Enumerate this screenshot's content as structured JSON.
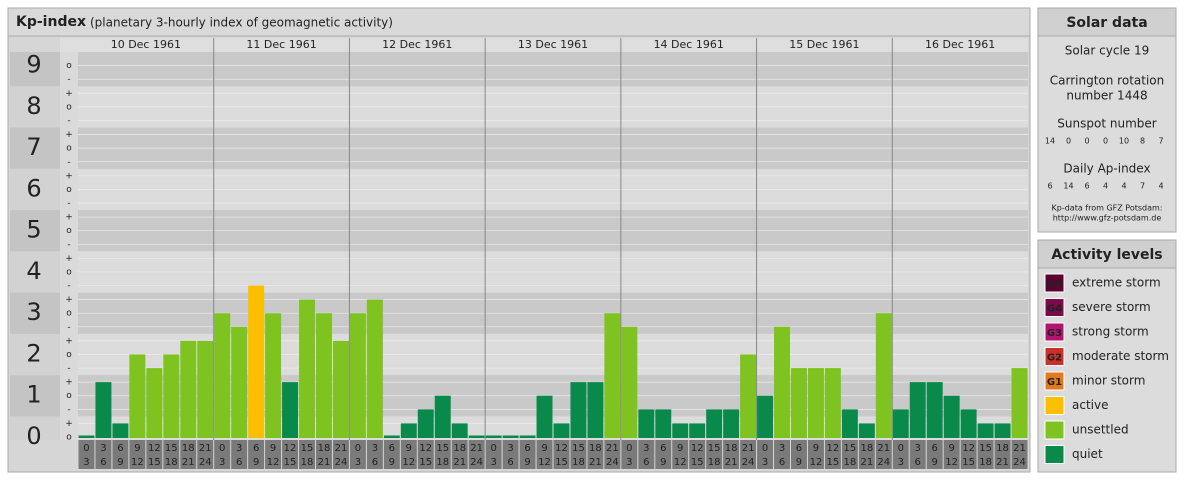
{
  "header": {
    "title": "Kp-index",
    "subtitle": "(planetary 3-hourly index of geomagnetic activity)"
  },
  "chart_data": {
    "type": "bar",
    "days": [
      "10 Dec 1961",
      "11 Dec 1961",
      "12 Dec 1961",
      "13 Dec 1961",
      "14 Dec 1961",
      "15 Dec 1961",
      "16 Dec 1961"
    ],
    "hours": [
      0,
      3,
      6,
      9,
      12,
      15,
      18,
      21,
      24
    ],
    "ylim": [
      0,
      9.33
    ],
    "yticks": [
      0,
      1,
      2,
      3,
      4,
      5,
      6,
      7,
      8,
      9
    ],
    "subticks": [
      {
        "value": 0,
        "label": "o"
      },
      {
        "value": 0.33,
        "label": "+"
      },
      {
        "value": 0.67,
        "label": "-"
      },
      {
        "value": 1,
        "label": "o"
      },
      {
        "value": 1.33,
        "label": "+"
      },
      {
        "value": 1.67,
        "label": "-"
      },
      {
        "value": 2,
        "label": "o"
      },
      {
        "value": 2.33,
        "label": "+"
      },
      {
        "value": 2.67,
        "label": "-"
      },
      {
        "value": 3,
        "label": "o"
      },
      {
        "value": 3.33,
        "label": "+"
      },
      {
        "value": 3.67,
        "label": "-"
      },
      {
        "value": 4,
        "label": "o"
      },
      {
        "value": 4.33,
        "label": "+"
      },
      {
        "value": 4.67,
        "label": "-"
      },
      {
        "value": 5,
        "label": "o"
      },
      {
        "value": 5.33,
        "label": "+"
      },
      {
        "value": 5.67,
        "label": "-"
      },
      {
        "value": 6,
        "label": "o"
      },
      {
        "value": 6.33,
        "label": "+"
      },
      {
        "value": 6.67,
        "label": "-"
      },
      {
        "value": 7,
        "label": "o"
      },
      {
        "value": 7.33,
        "label": "+"
      },
      {
        "value": 7.67,
        "label": "-"
      },
      {
        "value": 8,
        "label": "o"
      },
      {
        "value": 8.33,
        "label": "+"
      },
      {
        "value": 8.67,
        "label": "-"
      },
      {
        "value": 9,
        "label": "o"
      }
    ],
    "series": [
      {
        "values": [
          0,
          1.33,
          0.33,
          2,
          1.67,
          2,
          2.33,
          2.33,
          3,
          2.67,
          3.67,
          3,
          1.33,
          3.33,
          3,
          2.33,
          3,
          3.33,
          0,
          0.33,
          0.67,
          1,
          0.33,
          0,
          0,
          0,
          0,
          1,
          0.33,
          1.33,
          1.33,
          3,
          2.67,
          0.67,
          0.67,
          0.33,
          0.33,
          0.67,
          0.67,
          2,
          1,
          2.67,
          1.67,
          1.67,
          1.67,
          0.67,
          0.33,
          3,
          0.67,
          1.33,
          1.33,
          1,
          0.67,
          0.33,
          0.33,
          1.67
        ],
        "colors": [
          "#0a8a4a",
          "#0a8a4a",
          "#0a8a4a",
          "#7ec31f",
          "#7ec31f",
          "#7ec31f",
          "#7ec31f",
          "#7ec31f",
          "#7ec31f",
          "#7ec31f",
          "#fbbf00",
          "#7ec31f",
          "#0a8a4a",
          "#7ec31f",
          "#7ec31f",
          "#7ec31f",
          "#7ec31f",
          "#7ec31f",
          "#0a8a4a",
          "#0a8a4a",
          "#0a8a4a",
          "#0a8a4a",
          "#0a8a4a",
          "#0a8a4a",
          "#0a8a4a",
          "#0a8a4a",
          "#0a8a4a",
          "#0a8a4a",
          "#0a8a4a",
          "#0a8a4a",
          "#0a8a4a",
          "#7ec31f",
          "#7ec31f",
          "#0a8a4a",
          "#0a8a4a",
          "#0a8a4a",
          "#0a8a4a",
          "#0a8a4a",
          "#0a8a4a",
          "#7ec31f",
          "#0a8a4a",
          "#7ec31f",
          "#7ec31f",
          "#7ec31f",
          "#7ec31f",
          "#0a8a4a",
          "#0a8a4a",
          "#7ec31f",
          "#0a8a4a",
          "#0a8a4a",
          "#0a8a4a",
          "#0a8a4a",
          "#0a8a4a",
          "#0a8a4a",
          "#0a8a4a",
          "#7ec31f"
        ]
      }
    ]
  },
  "solar": {
    "title": "Solar data",
    "cycle": "Solar cycle 19",
    "rotation": [
      "Carrington rotation",
      "number 1448"
    ],
    "sunspot_label": "Sunspot number",
    "sunspot": [
      14,
      0,
      0,
      0,
      10,
      8,
      7
    ],
    "ap_label": "Daily Ap-index",
    "ap": [
      6,
      14,
      6,
      4,
      4,
      7,
      4
    ],
    "source": [
      "Kp-data from GFZ Potsdam:",
      "http://www.gfz-potsdam.de"
    ]
  },
  "activity": {
    "title": "Activity levels",
    "levels": [
      {
        "badge": "G5",
        "label": "extreme storm",
        "color": "#5c0030"
      },
      {
        "badge": "G4",
        "label": "severe storm",
        "color": "#7a0a4a"
      },
      {
        "badge": "G3",
        "label": "strong storm",
        "color": "#b0146e"
      },
      {
        "badge": "G2",
        "label": "moderate storm",
        "color": "#c8322a"
      },
      {
        "badge": "G1",
        "label": "minor storm",
        "color": "#e07a1e"
      },
      {
        "label": "active",
        "color": "#fbbf00"
      },
      {
        "label": "unsettled",
        "color": "#7ec31f"
      },
      {
        "label": "quiet",
        "color": "#0a8a4a"
      }
    ]
  }
}
